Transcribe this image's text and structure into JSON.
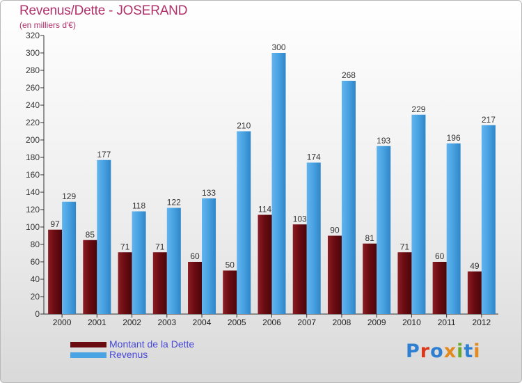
{
  "header": {
    "title": "Revenus/Dette - JOSERAND",
    "subtitle": "(en milliers d'€)"
  },
  "colors": {
    "dette": "#6b0c12",
    "revenus": "#4aa3e2",
    "title": "#b0306a",
    "legend_text": "#4848d8",
    "logo_letters": [
      "#2e7fd1",
      "#d9381e",
      "#2e7fd1",
      "#e38a1e",
      "#6aa82e",
      "#2e7fd1",
      "#e38a1e"
    ]
  },
  "legend": {
    "items": [
      {
        "label": "Montant de la Dette",
        "color": "#6b0c12"
      },
      {
        "label": "Revenus",
        "color": "#4aa3e2"
      }
    ]
  },
  "logo": {
    "text": "Proxiti",
    "letters": [
      "P",
      "r",
      "o",
      "x",
      "i",
      "t",
      "i"
    ]
  },
  "chart_data": {
    "type": "bar",
    "categories": [
      "2000",
      "2001",
      "2002",
      "2003",
      "2004",
      "2005",
      "2006",
      "2007",
      "2008",
      "2009",
      "2010",
      "2011",
      "2012"
    ],
    "series": [
      {
        "name": "Montant de la Dette",
        "values": [
          97,
          85,
          71,
          71,
          60,
          50,
          114,
          103,
          90,
          81,
          71,
          60,
          49
        ]
      },
      {
        "name": "Revenus",
        "values": [
          129,
          177,
          118,
          122,
          133,
          210,
          300,
          174,
          268,
          193,
          229,
          196,
          217
        ]
      }
    ],
    "title": "Revenus/Dette - JOSERAND",
    "ylabel": "(en milliers d'€)",
    "ylim": [
      0,
      320
    ],
    "ytick_step": 20,
    "grid": false,
    "legend_position": "bottom-left",
    "data_labels": true
  }
}
